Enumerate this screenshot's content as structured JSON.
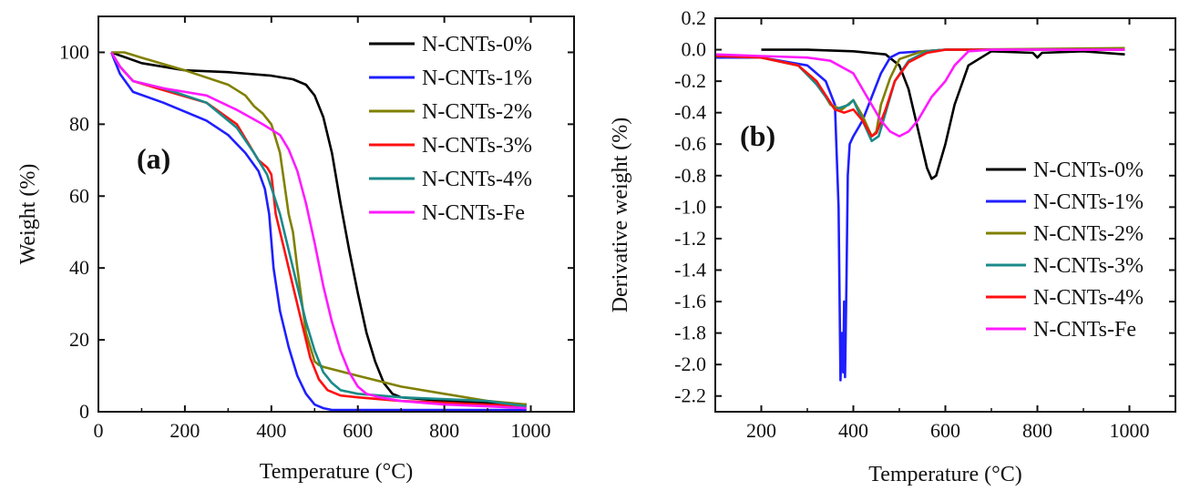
{
  "chart_data": [
    {
      "type": "line",
      "panel_label": "(a)",
      "xlabel": "Temperature (°C)",
      "ylabel": "Weight (%)",
      "xlim": [
        0,
        1100
      ],
      "ylim": [
        0,
        110
      ],
      "xticks": [
        0,
        200,
        400,
        600,
        800,
        1000
      ],
      "yticks": [
        0,
        20,
        40,
        60,
        80,
        100
      ],
      "xtick_labels": [
        "0",
        "200",
        "400",
        "600",
        "800",
        "1000"
      ],
      "ytick_labels": [
        "0",
        "20",
        "40",
        "60",
        "80",
        "100"
      ],
      "legend_position": "top-right",
      "series": [
        {
          "name": "N-CNTs-0%",
          "color": "#000000",
          "x": [
            30,
            100,
            200,
            300,
            400,
            450,
            480,
            500,
            520,
            540,
            560,
            580,
            600,
            620,
            640,
            660,
            680,
            700,
            800,
            900,
            990
          ],
          "y": [
            100,
            97,
            95,
            94.5,
            93.5,
            92.5,
            91,
            88,
            82,
            72,
            58,
            45,
            33,
            22,
            14,
            8,
            5,
            4,
            3,
            2.5,
            2
          ]
        },
        {
          "name": "N-CNTs-1%",
          "color": "#1f1fff",
          "x": [
            30,
            50,
            80,
            150,
            250,
            300,
            340,
            370,
            385,
            395,
            405,
            420,
            440,
            460,
            480,
            500,
            520,
            540,
            600,
            800,
            990
          ],
          "y": [
            100,
            94,
            89,
            86,
            81,
            77,
            72,
            67,
            62,
            55,
            40,
            28,
            18,
            10,
            5,
            2,
            1,
            0.5,
            0.5,
            0.5,
            0.5
          ]
        },
        {
          "name": "N-CNTs-2%",
          "color": "#808000",
          "x": [
            30,
            60,
            100,
            200,
            300,
            340,
            360,
            380,
            400,
            420,
            440,
            450,
            460,
            480,
            500,
            510,
            520,
            600,
            700,
            800,
            900,
            990
          ],
          "y": [
            100,
            100,
            98.5,
            95,
            91,
            88,
            85,
            83,
            80,
            72,
            55,
            50,
            40,
            22,
            14,
            13,
            12.5,
            10,
            7,
            5,
            3,
            2
          ]
        },
        {
          "name": "N-CNTs-3%",
          "color": "#ff1010",
          "x": [
            30,
            50,
            80,
            150,
            250,
            320,
            370,
            390,
            400,
            410,
            430,
            450,
            470,
            490,
            510,
            530,
            560,
            600,
            700,
            800,
            990
          ],
          "y": [
            100,
            96,
            92,
            89.5,
            86,
            80,
            70,
            68,
            66,
            55,
            45,
            35,
            25,
            15,
            9,
            6,
            4.5,
            4,
            3,
            2.5,
            1.5
          ]
        },
        {
          "name": "N-CNTs-4%",
          "color": "#1a8a8a",
          "x": [
            30,
            50,
            80,
            150,
            250,
            320,
            360,
            390,
            420,
            440,
            460,
            480,
            500,
            520,
            540,
            560,
            600,
            650,
            700,
            800,
            900,
            990
          ],
          "y": [
            100,
            96,
            92,
            90,
            86,
            79,
            72,
            66,
            55,
            45,
            35,
            25,
            17,
            11,
            8,
            6,
            5,
            4.5,
            4,
            3.5,
            3,
            1.5
          ]
        },
        {
          "name": "N-CNTs-Fe",
          "color": "#ff1aff",
          "x": [
            30,
            50,
            80,
            150,
            250,
            320,
            380,
            420,
            440,
            460,
            480,
            500,
            520,
            540,
            560,
            580,
            600,
            620,
            650,
            700,
            800,
            900,
            990
          ],
          "y": [
            100,
            96,
            92,
            90,
            88,
            84,
            80,
            77,
            73,
            67,
            58,
            47,
            35,
            25,
            17,
            11,
            7,
            5,
            4,
            3,
            2,
            1.5,
            1
          ]
        }
      ]
    },
    {
      "type": "line",
      "panel_label": "(b)",
      "xlabel": "Temperature (°C)",
      "ylabel": "Derivative weight (%)",
      "xlim": [
        100,
        1100
      ],
      "ylim": [
        -2.3,
        0.2
      ],
      "xticks": [
        200,
        400,
        600,
        800,
        1000
      ],
      "yticks": [
        0.2,
        0.0,
        -0.2,
        -0.4,
        -0.6,
        -0.8,
        -1.0,
        -1.2,
        -1.4,
        -1.6,
        -1.8,
        -2.0,
        -2.2
      ],
      "xtick_labels": [
        "200",
        "400",
        "600",
        "800",
        "1000"
      ],
      "ytick_labels": [
        "0.2",
        "0.0",
        "-0.2",
        "-0.4",
        "-0.6",
        "-0.8",
        "-1.0",
        "-1.2",
        "-1.4",
        "-1.6",
        "-1.8",
        "-2.0",
        "-2.2"
      ],
      "legend_position": "right",
      "series": [
        {
          "name": "N-CNTs-0%",
          "color": "#000000",
          "x": [
            200,
            300,
            400,
            470,
            500,
            520,
            540,
            560,
            570,
            580,
            600,
            620,
            650,
            700,
            790,
            800,
            810,
            900,
            990
          ],
          "y": [
            0,
            0,
            -0.01,
            -0.03,
            -0.1,
            -0.25,
            -0.5,
            -0.75,
            -0.82,
            -0.8,
            -0.6,
            -0.35,
            -0.1,
            -0.01,
            -0.02,
            -0.05,
            -0.02,
            -0.01,
            -0.03
          ]
        },
        {
          "name": "N-CNTs-1%",
          "color": "#1f1fff",
          "x": [
            100,
            200,
            300,
            340,
            360,
            368,
            372,
            375,
            378,
            380,
            382,
            385,
            388,
            392,
            400,
            420,
            440,
            460,
            480,
            500,
            600,
            990
          ],
          "y": [
            -0.05,
            -0.05,
            -0.1,
            -0.2,
            -0.35,
            -1.0,
            -2.1,
            -1.8,
            -2.05,
            -1.6,
            -2.08,
            -1.5,
            -0.8,
            -0.6,
            -0.55,
            -0.45,
            -0.3,
            -0.15,
            -0.05,
            -0.02,
            0,
            0
          ]
        },
        {
          "name": "N-CNTs-2%",
          "color": "#808000",
          "x": [
            100,
            200,
            280,
            320,
            350,
            375,
            400,
            420,
            440,
            450,
            460,
            480,
            500,
            550,
            600,
            990
          ],
          "y": [
            -0.04,
            -0.05,
            -0.1,
            -0.2,
            -0.35,
            -0.38,
            -0.32,
            -0.42,
            -0.55,
            -0.52,
            -0.35,
            -0.18,
            -0.06,
            -0.01,
            0,
            0.01
          ]
        },
        {
          "name": "N-CNTs-3%",
          "color": "#1a8a8a",
          "x": [
            100,
            200,
            280,
            320,
            360,
            390,
            400,
            420,
            440,
            455,
            470,
            490,
            520,
            560,
            600,
            990
          ],
          "y": [
            -0.04,
            -0.05,
            -0.1,
            -0.22,
            -0.38,
            -0.35,
            -0.32,
            -0.45,
            -0.58,
            -0.55,
            -0.4,
            -0.2,
            -0.07,
            -0.01,
            0,
            0
          ]
        },
        {
          "name": "N-CNTs-4%",
          "color": "#ff1010",
          "x": [
            100,
            200,
            280,
            320,
            360,
            380,
            400,
            420,
            440,
            450,
            470,
            490,
            520,
            560,
            600,
            990
          ],
          "y": [
            -0.04,
            -0.05,
            -0.1,
            -0.2,
            -0.38,
            -0.4,
            -0.38,
            -0.45,
            -0.55,
            -0.53,
            -0.38,
            -0.2,
            -0.08,
            -0.02,
            0,
            0
          ]
        },
        {
          "name": "N-CNTs-Fe",
          "color": "#ff1aff",
          "x": [
            100,
            200,
            300,
            350,
            400,
            430,
            460,
            480,
            500,
            520,
            540,
            570,
            600,
            620,
            650,
            700,
            990
          ],
          "y": [
            -0.03,
            -0.04,
            -0.05,
            -0.07,
            -0.15,
            -0.3,
            -0.45,
            -0.52,
            -0.55,
            -0.52,
            -0.45,
            -0.3,
            -0.2,
            -0.1,
            -0.01,
            0,
            0
          ]
        }
      ]
    }
  ]
}
